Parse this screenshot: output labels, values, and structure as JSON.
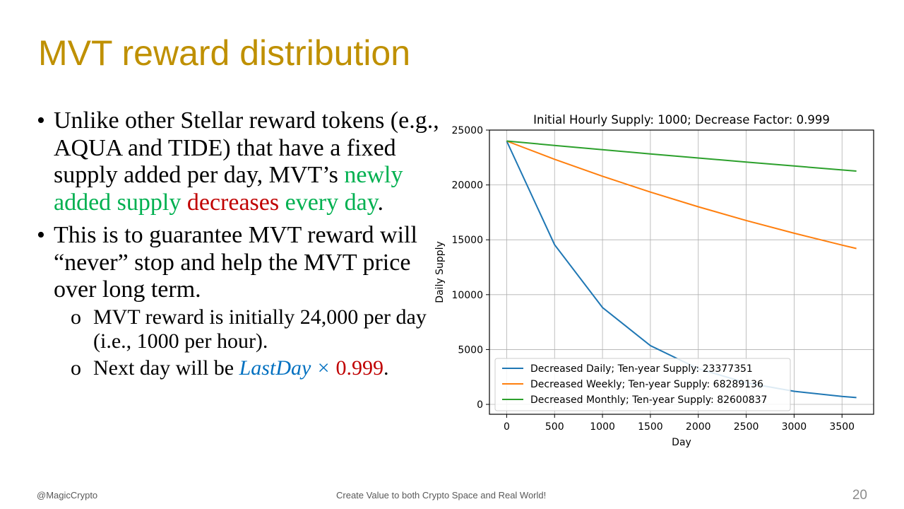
{
  "slide": {
    "title": "MVT reward distribution",
    "bullets": {
      "b1": {
        "pre": "Unlike other Stellar reward tokens (e.g., AQUA and TIDE) that have a fixed supply added per day, MVT’s ",
        "green1": "newly added supply",
        "space1": " ",
        "red1": "decreases",
        "space2": " ",
        "green2": "every day",
        "post": "."
      },
      "b2": "This is to guarantee MVT reward will “never” stop and help the MVT price over long term.",
      "sub1": "MVT reward is initially 24,000 per day (i.e., 1000 per hour).",
      "sub2": {
        "pre": "Next day will be ",
        "math": "LastDay ×",
        "space": " ",
        "value": "0.999",
        "post": "."
      }
    },
    "bullet_glyph": "•",
    "sub_glyph": "o",
    "footer_left": "@MagicCrypto",
    "footer_center": "Create Value to both Crypto Space and Real World!",
    "page_number": "20"
  },
  "chart_data": {
    "type": "line",
    "title": "Initial Hourly Supply: 1000; Decrease Factor: 0.999",
    "xlabel": "Day",
    "ylabel": "Daily Supply",
    "xlim": [
      -180,
      3830
    ],
    "ylim": [
      -900,
      25000
    ],
    "xticks": [
      0,
      500,
      1000,
      1500,
      2000,
      2500,
      3000,
      3500
    ],
    "yticks": [
      0,
      5000,
      10000,
      15000,
      20000,
      25000
    ],
    "grid": true,
    "legend_position": "lower-left",
    "x": [
      0,
      500,
      1000,
      1500,
      2000,
      2500,
      3000,
      3500,
      3650
    ],
    "series": [
      {
        "name": "Decreased Daily; Ten-year Supply: 23377351",
        "color": "#1f77b4",
        "values": [
          24000,
          14557,
          8829,
          5355,
          3248,
          1970,
          1195,
          725,
          622
        ]
      },
      {
        "name": "Decreased Weekly; Ten-year Supply: 68289136",
        "color": "#ff7f0e",
        "values": [
          24000,
          22338,
          20790,
          19350,
          18010,
          16762,
          15601,
          14520,
          14210
        ]
      },
      {
        "name": "Decreased Monthly; Ten-year Supply: 82600837",
        "color": "#2ca02c",
        "values": [
          24000,
          23600,
          23212,
          22830,
          22455,
          22086,
          21724,
          21367,
          21262
        ]
      }
    ]
  }
}
